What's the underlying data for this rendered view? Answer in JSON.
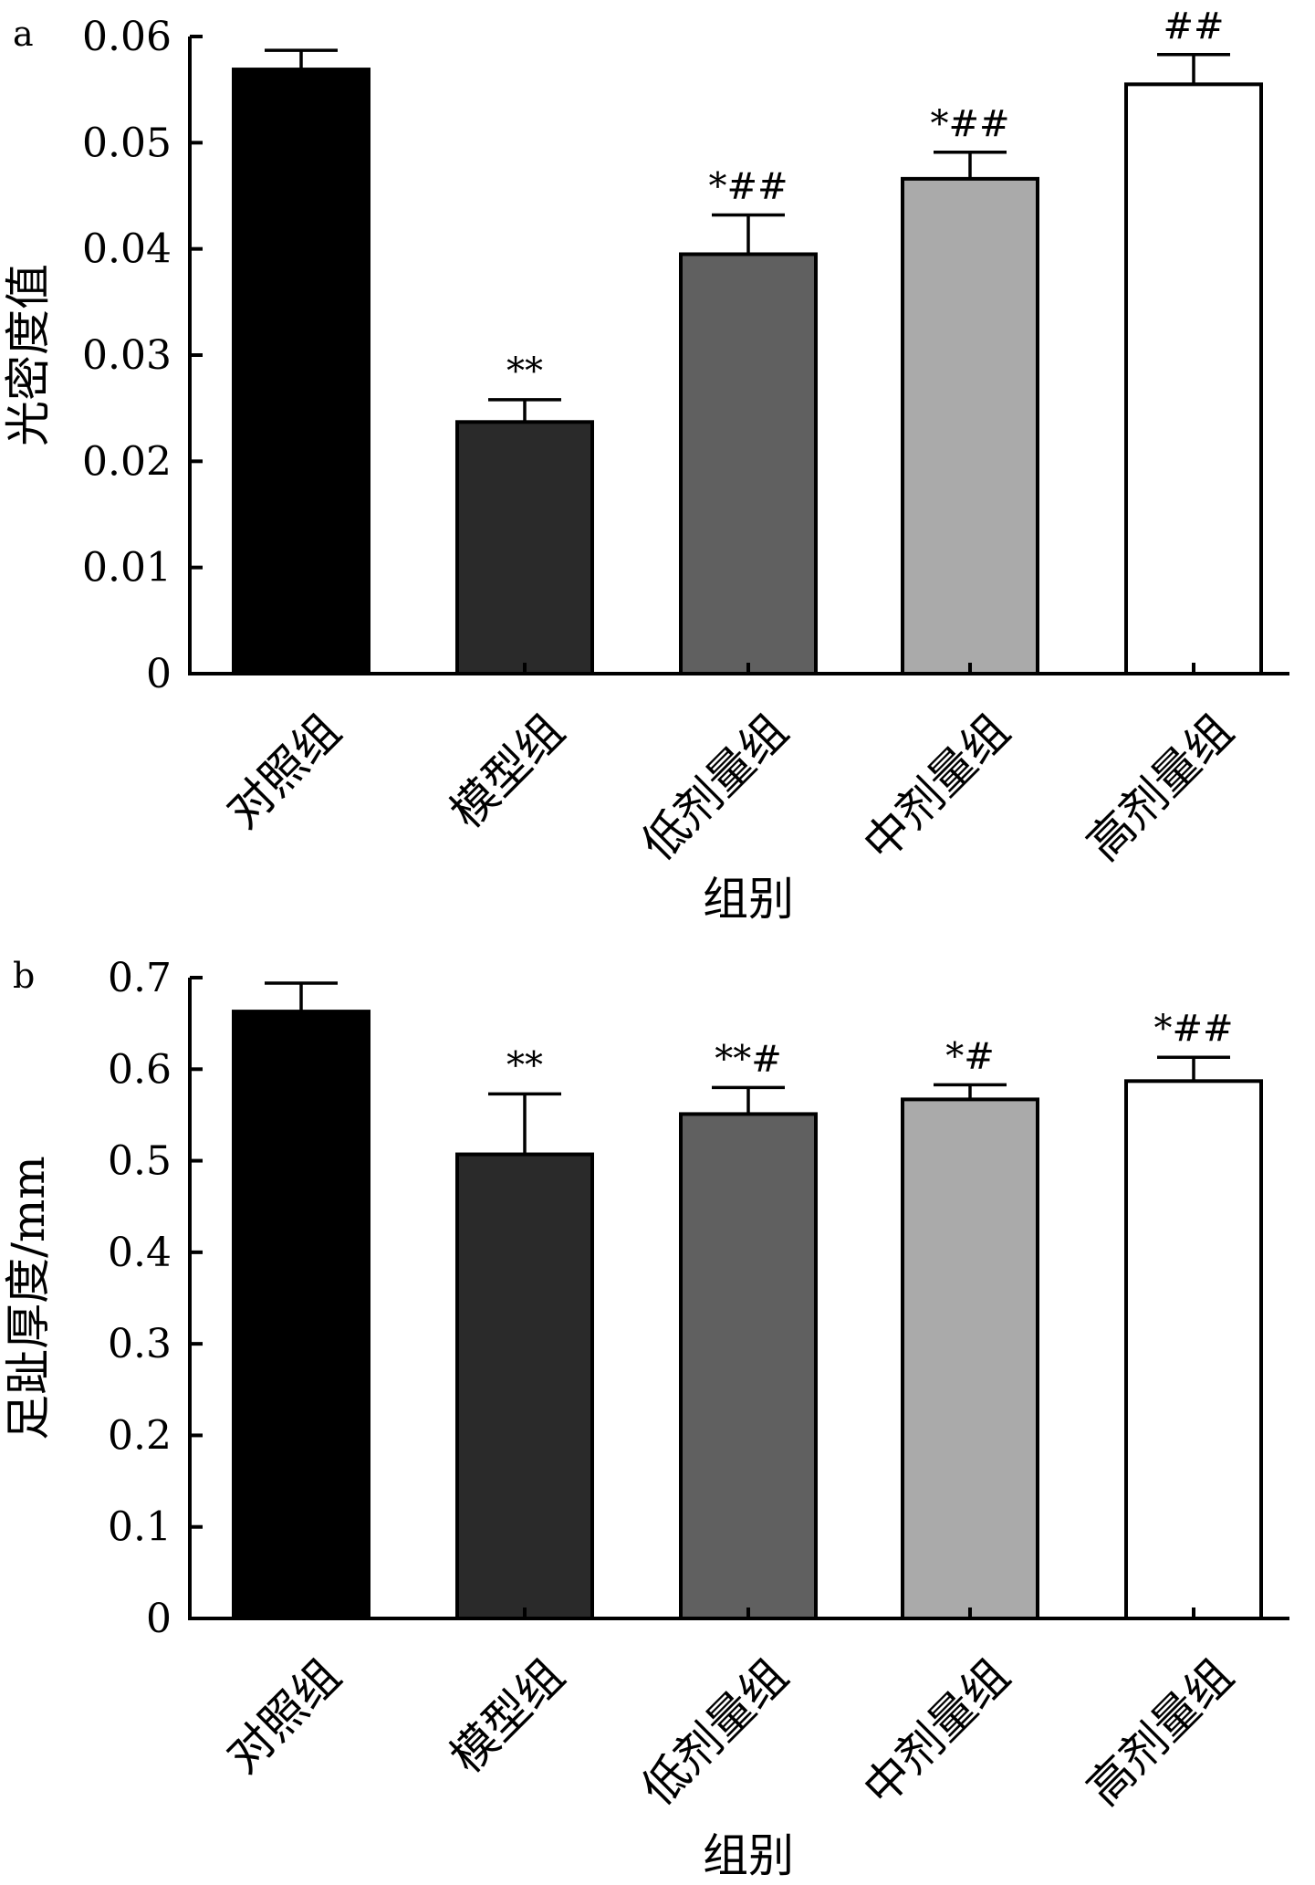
{
  "chart_data": [
    {
      "panel": "a",
      "type": "bar",
      "categories": [
        "对照组",
        "模型组",
        "低剂量组",
        "中剂量组",
        "高剂量组"
      ],
      "values": [
        0.0569,
        0.0237,
        0.0395,
        0.0466,
        0.0555
      ],
      "errors": [
        0.0018,
        0.0021,
        0.0037,
        0.0025,
        0.0028
      ],
      "annotations": [
        "",
        "**",
        "*##",
        "*##",
        "##"
      ],
      "colors": [
        "#000000",
        "#2a2a2a",
        "#606060",
        "#aaaaaa",
        "#ffffff"
      ],
      "xlabel": "组别",
      "ylabel": "光密度值",
      "ylim": [
        0,
        0.06
      ],
      "yticks": [
        "0",
        "0.01",
        "0.02",
        "0.03",
        "0.04",
        "0.05",
        "0.06"
      ],
      "grid": false,
      "legend": "none"
    },
    {
      "panel": "b",
      "type": "bar",
      "categories": [
        "对照组",
        "模型组",
        "低剂量组",
        "中剂量组",
        "高剂量组"
      ],
      "values": [
        0.663,
        0.507,
        0.551,
        0.567,
        0.587
      ],
      "errors": [
        0.031,
        0.066,
        0.029,
        0.016,
        0.026
      ],
      "annotations": [
        "",
        "**",
        "**#",
        "*#",
        "*##"
      ],
      "colors": [
        "#000000",
        "#2a2a2a",
        "#606060",
        "#aaaaaa",
        "#ffffff"
      ],
      "xlabel": "组别",
      "ylabel": "足趾厚度/mm",
      "ylim": [
        0,
        0.7
      ],
      "yticks": [
        "0",
        "0.1",
        "0.2",
        "0.3",
        "0.4",
        "0.5",
        "0.6",
        "0.7"
      ],
      "grid": false,
      "legend": "none"
    }
  ]
}
